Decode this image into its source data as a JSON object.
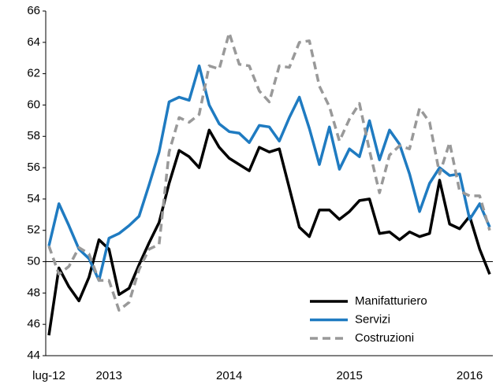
{
  "chart_data": {
    "type": "line",
    "categories": [
      "lug-12",
      null,
      null,
      null,
      null,
      null,
      "2013",
      null,
      null,
      null,
      null,
      null,
      null,
      null,
      null,
      null,
      null,
      null,
      "2014",
      null,
      null,
      null,
      null,
      null,
      null,
      null,
      null,
      null,
      null,
      null,
      "2015",
      null,
      null,
      null,
      null,
      null,
      null,
      null,
      null,
      null,
      null,
      null,
      "2016",
      null,
      null
    ],
    "series": [
      {
        "name": "Manifatturiero",
        "color": "#000000",
        "dashed": false,
        "values": [
          45.3,
          49.6,
          48.4,
          47.5,
          49.0,
          51.4,
          50.8,
          47.9,
          48.3,
          49.8,
          51.2,
          52.5,
          55.0,
          57.1,
          56.7,
          56.0,
          58.4,
          57.3,
          56.6,
          56.2,
          55.8,
          57.3,
          57.0,
          57.2,
          54.7,
          52.2,
          51.6,
          53.3,
          53.3,
          52.7,
          53.2,
          53.9,
          54.0,
          51.8,
          51.9,
          51.4,
          51.9,
          51.6,
          51.8,
          55.2,
          52.4,
          52.1,
          52.9,
          50.8,
          49.2
        ]
      },
      {
        "name": "Servizi",
        "color": "#1f7bc1",
        "dashed": false,
        "values": [
          51.0,
          53.7,
          52.3,
          50.8,
          50.2,
          48.8,
          51.5,
          51.8,
          52.3,
          52.9,
          54.9,
          57.0,
          60.2,
          60.5,
          60.3,
          62.5,
          60.0,
          58.8,
          58.3,
          58.2,
          57.6,
          58.7,
          58.6,
          57.7,
          59.2,
          60.5,
          58.5,
          56.2,
          58.6,
          55.9,
          57.2,
          56.7,
          59.0,
          56.5,
          58.4,
          57.5,
          55.6,
          53.2,
          55.0,
          56.0,
          55.5,
          55.6,
          52.7,
          53.7,
          52.2
        ]
      },
      {
        "name": "Costruzioni",
        "color": "#999999",
        "dashed": true,
        "values": [
          51.0,
          49.2,
          49.7,
          50.9,
          50.5,
          48.8,
          48.8,
          46.9,
          47.4,
          49.5,
          50.8,
          51.1,
          57.0,
          59.2,
          58.9,
          59.4,
          62.5,
          62.3,
          64.6,
          62.6,
          62.5,
          60.9,
          60.2,
          62.5,
          62.4,
          64.0,
          64.1,
          61.2,
          59.9,
          57.7,
          59.1,
          60.1,
          57.1,
          54.4,
          56.8,
          57.4,
          57.2,
          59.8,
          58.9,
          55.6,
          57.6,
          54.5,
          54.2,
          54.2,
          52.0
        ]
      }
    ],
    "ylim": [
      44,
      66
    ],
    "yticks": [
      44,
      46,
      48,
      50,
      52,
      54,
      56,
      58,
      60,
      62,
      64,
      66
    ],
    "baseline": 50,
    "grid": false,
    "legend": "lower right"
  }
}
